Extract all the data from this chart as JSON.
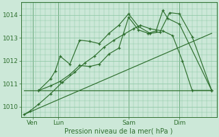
{
  "background_color": "#cce8d8",
  "grid_color": "#88c4a0",
  "line_color": "#2d6e2d",
  "marker_color": "#2d6e2d",
  "xlabel": "Pression niveau de la mer( hPa )",
  "ylim": [
    1009.55,
    1014.55
  ],
  "yticks": [
    1010,
    1011,
    1012,
    1013,
    1014
  ],
  "xlim": [
    0,
    20
  ],
  "day_ticks": [
    {
      "x": 1.2,
      "label": "Ven"
    },
    {
      "x": 3.8,
      "label": "Lun"
    },
    {
      "x": 11.0,
      "label": "Sam"
    },
    {
      "x": 16.2,
      "label": "Dim"
    }
  ],
  "vlines": [
    1.2,
    3.8,
    11.0,
    16.2
  ],
  "series": [
    {
      "x": [
        0.3,
        19.5
      ],
      "y": [
        1009.65,
        1013.2
      ],
      "has_markers": false
    },
    {
      "x": [
        0.3,
        0.9,
        1.8,
        3.0,
        4.2,
        5.5,
        6.5,
        7.5,
        8.5,
        9.5,
        10.5,
        11.5,
        12.2,
        13.2,
        14.5,
        15.5,
        16.5,
        17.5,
        19.5
      ],
      "y": [
        1009.65,
        1009.8,
        1010.1,
        1010.55,
        1011.05,
        1011.5,
        1011.9,
        1012.2,
        1012.6,
        1012.9,
        1013.15,
        1013.4,
        1013.55,
        1013.4,
        1013.3,
        1013.1,
        1012.0,
        1010.7,
        1010.7
      ],
      "has_markers": true
    },
    {
      "x": [
        1.8,
        3.0,
        3.5,
        4.0,
        5.0,
        6.0,
        7.0,
        8.0,
        9.0,
        10.0,
        11.0,
        12.0,
        13.2,
        14.2,
        15.2,
        16.2,
        17.5,
        19.5
      ],
      "y": [
        1010.7,
        1011.2,
        1011.55,
        1012.2,
        1011.85,
        1012.9,
        1012.85,
        1012.75,
        1013.2,
        1013.55,
        1014.05,
        1013.5,
        1013.2,
        1013.25,
        1014.1,
        1014.05,
        1013.05,
        1010.7
      ],
      "has_markers": true
    },
    {
      "x": [
        1.8,
        3.0,
        4.0,
        5.0,
        6.0,
        7.0,
        8.0,
        9.0,
        10.0,
        11.0,
        12.0,
        13.0,
        13.8,
        14.5,
        15.0,
        16.2,
        19.5
      ],
      "y": [
        1010.7,
        1010.9,
        1011.1,
        1011.4,
        1011.8,
        1011.75,
        1011.85,
        1012.3,
        1012.55,
        1013.9,
        1013.35,
        1013.2,
        1013.3,
        1014.2,
        1013.85,
        1013.6,
        1010.7
      ],
      "has_markers": true
    },
    {
      "x": [
        0.3,
        19.5
      ],
      "y": [
        1010.7,
        1010.7
      ],
      "has_markers": false
    }
  ],
  "figsize": [
    3.2,
    2.0
  ],
  "dpi": 100
}
